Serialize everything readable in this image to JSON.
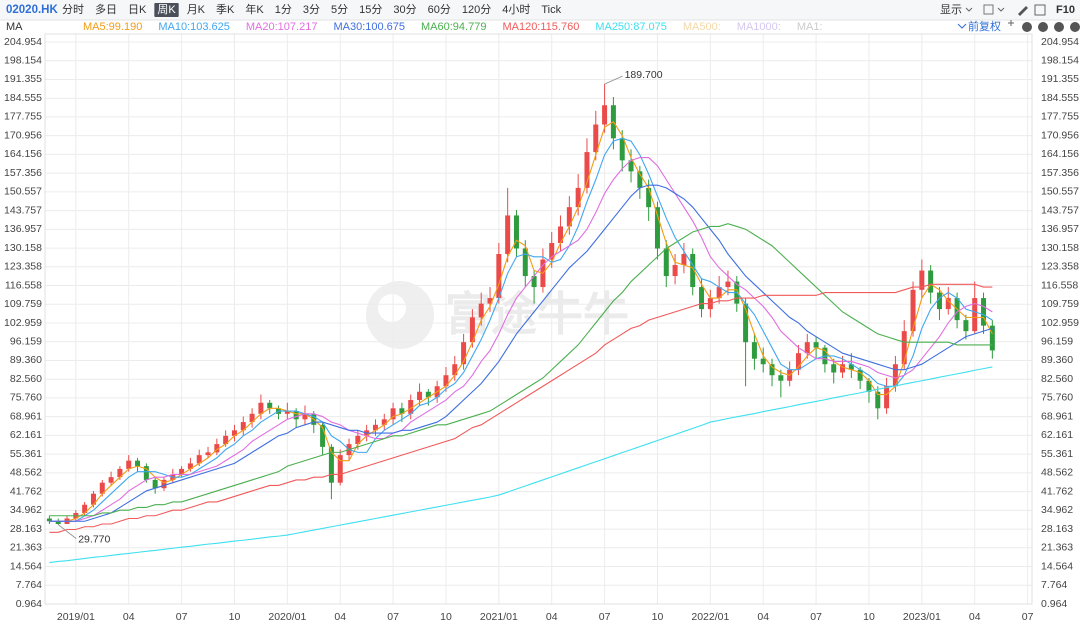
{
  "toolbar": {
    "symbol": "02020.HK",
    "periods": [
      "分时",
      "多日",
      "日K",
      "周K",
      "月K",
      "季K",
      "年K",
      "1分",
      "3分",
      "5分",
      "15分",
      "30分",
      "60分",
      "120分",
      "4小时",
      "Tick"
    ],
    "active_period": "周K",
    "display": "显示",
    "f10": "F10",
    "indicator": "MA",
    "adjust": "前复权",
    "watermark": "富途牛牛"
  },
  "chart_data": {
    "type": "candlestick",
    "categories": [
      null,
      null,
      null,
      "2019/01",
      null,
      null,
      null,
      null,
      null,
      "04",
      null,
      null,
      null,
      null,
      null,
      "07",
      null,
      null,
      null,
      null,
      null,
      "10",
      null,
      null,
      null,
      null,
      null,
      "2020/01",
      null,
      null,
      null,
      null,
      null,
      "04",
      null,
      null,
      null,
      null,
      null,
      "07",
      null,
      null,
      null,
      null,
      null,
      "10",
      null,
      null,
      null,
      null,
      null,
      "2021/01",
      null,
      null,
      null,
      null,
      null,
      "04",
      null,
      null,
      null,
      null,
      null,
      "07",
      null,
      null,
      null,
      null,
      null,
      "10",
      null,
      null,
      null,
      null,
      null,
      "2022/01",
      null,
      null,
      null,
      null,
      null,
      "04",
      null,
      null,
      null,
      null,
      null,
      "07",
      null,
      null,
      null,
      null,
      null,
      "10",
      null,
      null,
      null,
      null,
      null,
      "2023/01",
      null,
      null,
      null,
      null,
      null,
      "04",
      null,
      null,
      null,
      null,
      null,
      "07"
    ],
    "open": [
      32,
      31,
      30,
      32,
      34,
      37,
      41,
      45,
      47,
      50,
      53,
      51,
      46,
      43,
      46,
      48,
      50,
      52,
      55,
      56,
      59,
      62,
      64,
      67,
      70,
      74,
      72,
      70,
      71,
      68,
      70,
      66,
      58,
      45,
      55,
      59,
      62,
      64,
      66,
      68,
      72,
      70,
      75,
      78,
      76,
      80,
      84,
      88,
      96,
      105,
      110,
      112,
      128,
      142,
      130,
      120,
      116,
      126,
      132,
      138,
      145,
      152,
      165,
      175,
      182,
      170,
      162,
      158,
      152,
      145,
      130,
      120,
      124,
      128,
      116,
      108,
      112,
      116,
      118,
      110,
      96,
      90,
      88,
      84,
      82,
      86,
      92,
      96,
      94,
      88,
      85,
      88,
      86,
      82,
      78,
      72,
      80,
      88,
      100,
      115,
      122,
      114,
      108,
      112,
      104,
      100,
      112,
      102,
      null,
      null,
      null,
      null
    ],
    "high": [
      33,
      32,
      33,
      35,
      38,
      42,
      46,
      49,
      51,
      55,
      54,
      52,
      47,
      47,
      50,
      51,
      54,
      57,
      58,
      61,
      64,
      66,
      69,
      72,
      77,
      75,
      73,
      74,
      72,
      73,
      71,
      67,
      59,
      57,
      61,
      64,
      66,
      68,
      70,
      74,
      74,
      77,
      81,
      79,
      82,
      87,
      91,
      99,
      108,
      114,
      116,
      132,
      152,
      144,
      133,
      122,
      130,
      136,
      142,
      149,
      157,
      170,
      180,
      189.7,
      185,
      173,
      166,
      160,
      155,
      147,
      133,
      128,
      132,
      130,
      119,
      115,
      120,
      122,
      120,
      112,
      99,
      94,
      90,
      86,
      89,
      95,
      99,
      98,
      95,
      90,
      91,
      92,
      87,
      83,
      80,
      83,
      91,
      104,
      118,
      126,
      124,
      116,
      116,
      114,
      106,
      118,
      114,
      104,
      null,
      null,
      null,
      null
    ],
    "low": [
      30,
      29.77,
      30,
      31,
      33,
      36,
      40,
      44,
      46,
      49,
      49,
      45,
      41,
      42,
      45,
      47,
      49,
      51,
      54,
      55,
      58,
      60,
      62,
      65,
      68,
      70,
      68,
      68,
      65,
      66,
      63,
      55,
      39,
      44,
      53,
      57,
      60,
      62,
      64,
      66,
      67,
      68,
      73,
      73,
      74,
      78,
      82,
      86,
      94,
      102,
      107,
      110,
      125,
      127,
      116,
      110,
      114,
      123,
      129,
      135,
      142,
      150,
      162,
      172,
      166,
      158,
      154,
      148,
      140,
      126,
      116,
      117,
      121,
      113,
      105,
      105,
      110,
      113,
      107,
      80,
      86,
      85,
      80,
      76,
      80,
      84,
      90,
      90,
      85,
      81,
      83,
      83,
      79,
      74,
      68,
      70,
      78,
      86,
      98,
      112,
      110,
      104,
      106,
      101,
      97,
      99,
      99,
      90,
      null,
      null,
      null,
      null
    ],
    "close": [
      31,
      30,
      32,
      34,
      37,
      41,
      45,
      47,
      50,
      53,
      51,
      46,
      43,
      46,
      48,
      50,
      52,
      55,
      56,
      59,
      62,
      64,
      67,
      70,
      74,
      72,
      70,
      71,
      68,
      70,
      66,
      58,
      45,
      55,
      59,
      62,
      64,
      66,
      68,
      72,
      70,
      75,
      78,
      76,
      80,
      84,
      88,
      96,
      105,
      110,
      112,
      128,
      142,
      130,
      120,
      116,
      126,
      132,
      138,
      145,
      152,
      165,
      175,
      182,
      170,
      162,
      158,
      152,
      145,
      130,
      120,
      124,
      128,
      116,
      108,
      112,
      116,
      118,
      110,
      96,
      90,
      88,
      84,
      82,
      86,
      92,
      96,
      94,
      88,
      85,
      88,
      86,
      82,
      78,
      72,
      80,
      88,
      100,
      115,
      122,
      114,
      108,
      112,
      104,
      100,
      112,
      102,
      93,
      null,
      null,
      null,
      null
    ],
    "up_color": "#eb4a4a",
    "down_color": "#2e9b3e",
    "series": [
      {
        "name": "MA5:99.190",
        "color": "#f39c12",
        "values": [
          31,
          31,
          31,
          32,
          34,
          37,
          41,
          44,
          47,
          50,
          51,
          50,
          47,
          45,
          46,
          48,
          50,
          52,
          54,
          57,
          59,
          62,
          64,
          67,
          70,
          72,
          72,
          71,
          70,
          70,
          68,
          65,
          56,
          53,
          53,
          59,
          62,
          64,
          66,
          69,
          70,
          72,
          74,
          76,
          78,
          80,
          84,
          89,
          96,
          104,
          109,
          117,
          127,
          133,
          131,
          122,
          121,
          125,
          132,
          138,
          145,
          154,
          164,
          174,
          176,
          171,
          163,
          157,
          152,
          142,
          132,
          125,
          124,
          123,
          117,
          112,
          112,
          115,
          115,
          108,
          99,
          91,
          87,
          85,
          84,
          87,
          91,
          94,
          93,
          89,
          87,
          86,
          85,
          82,
          77,
          77,
          80,
          89,
          101,
          112,
          117,
          115,
          111,
          108,
          105,
          105,
          105,
          99,
          null,
          null,
          null,
          null
        ]
      },
      {
        "name": "MA10:103.625",
        "color": "#3fa7f0",
        "values": [
          31,
          31,
          31,
          31,
          33,
          35,
          38,
          41,
          44,
          47,
          49,
          49,
          49,
          48,
          47,
          47,
          48,
          50,
          52,
          54,
          57,
          59,
          62,
          64,
          67,
          69,
          71,
          71,
          71,
          70,
          69,
          67,
          62,
          60,
          57,
          56,
          56,
          61,
          64,
          66,
          68,
          70,
          73,
          74,
          76,
          79,
          81,
          85,
          91,
          97,
          104,
          112,
          121,
          127,
          128,
          127,
          127,
          125,
          126,
          131,
          138,
          147,
          155,
          164,
          169,
          170,
          169,
          164,
          157,
          149,
          141,
          134,
          129,
          124,
          119,
          118,
          116,
          114,
          114,
          110,
          106,
          100,
          94,
          88,
          86,
          86,
          88,
          90,
          91,
          91,
          90,
          88,
          86,
          84,
          81,
          80,
          80,
          84,
          91,
          101,
          108,
          112,
          114,
          112,
          108,
          107,
          106,
          104,
          null,
          null,
          null,
          null
        ]
      },
      {
        "name": "MA20:107.217",
        "color": "#e06ee0",
        "values": [
          31,
          31,
          31,
          31,
          32,
          33,
          35,
          37,
          39,
          42,
          44,
          46,
          47,
          47,
          48,
          48,
          48,
          49,
          50,
          51,
          53,
          55,
          57,
          60,
          62,
          64,
          66,
          68,
          69,
          70,
          70,
          69,
          67,
          66,
          64,
          63,
          62,
          61,
          61,
          63,
          64,
          67,
          69,
          71,
          73,
          75,
          78,
          80,
          84,
          89,
          93,
          99,
          106,
          112,
          116,
          120,
          124,
          127,
          129,
          131,
          133,
          137,
          143,
          150,
          155,
          159,
          162,
          163,
          163,
          160,
          155,
          150,
          145,
          140,
          134,
          127,
          123,
          120,
          117,
          115,
          112,
          109,
          105,
          100,
          97,
          94,
          92,
          90,
          90,
          89,
          89,
          89,
          88,
          87,
          85,
          84,
          83,
          84,
          86,
          90,
          94,
          98,
          103,
          107,
          109,
          110,
          109,
          107,
          null,
          null,
          null,
          null
        ]
      },
      {
        "name": "MA30:100.675",
        "color": "#3f6fe0",
        "values": [
          31,
          31,
          31,
          31,
          31,
          32,
          33,
          34,
          36,
          38,
          40,
          42,
          43,
          44,
          45,
          46,
          47,
          48,
          49,
          50,
          51,
          52,
          54,
          56,
          58,
          60,
          62,
          63,
          65,
          66,
          67,
          67,
          66,
          65,
          64,
          64,
          63,
          63,
          63,
          63,
          64,
          64,
          65,
          66,
          67,
          69,
          72,
          75,
          78,
          81,
          85,
          89,
          94,
          99,
          103,
          107,
          111,
          115,
          119,
          123,
          126,
          129,
          133,
          137,
          141,
          145,
          149,
          152,
          153,
          153,
          152,
          150,
          148,
          145,
          141,
          137,
          133,
          128,
          124,
          120,
          117,
          114,
          111,
          108,
          105,
          103,
          100,
          98,
          96,
          94,
          92,
          91,
          90,
          89,
          88,
          87,
          86,
          86,
          87,
          88,
          90,
          92,
          94,
          96,
          98,
          99,
          100,
          101,
          null,
          null,
          null,
          null
        ]
      },
      {
        "name": "MA60:94.779",
        "color": "#4caf50",
        "values": [
          33,
          33,
          33,
          33,
          33,
          33,
          34,
          34,
          35,
          35,
          36,
          36,
          37,
          37,
          38,
          38,
          39,
          40,
          41,
          42,
          43,
          44,
          45,
          46,
          47,
          48,
          49,
          51,
          52,
          53,
          54,
          55,
          56,
          56,
          57,
          58,
          59,
          60,
          61,
          62,
          62,
          63,
          64,
          65,
          66,
          66,
          67,
          68,
          69,
          70,
          71,
          73,
          75,
          77,
          79,
          81,
          83,
          86,
          89,
          92,
          95,
          99,
          103,
          107,
          111,
          114,
          118,
          121,
          124,
          127,
          130,
          132,
          134,
          136,
          137,
          138,
          138,
          139,
          138,
          137,
          135,
          133,
          131,
          128,
          125,
          122,
          119,
          116,
          113,
          110,
          107,
          105,
          103,
          101,
          99,
          98,
          97,
          96,
          96,
          96,
          96,
          96,
          96,
          95,
          95,
          95,
          95,
          95,
          null,
          null,
          null,
          null
        ]
      },
      {
        "name": "MA120:115.760",
        "color": "#f05a5a",
        "values": [
          27,
          27,
          28,
          28,
          29,
          29,
          30,
          30,
          31,
          32,
          32,
          33,
          33,
          34,
          35,
          35,
          36,
          37,
          38,
          38,
          39,
          40,
          41,
          42,
          43,
          44,
          44,
          45,
          46,
          46,
          47,
          47,
          48,
          48,
          49,
          50,
          51,
          52,
          53,
          54,
          55,
          56,
          57,
          58,
          59,
          60,
          61,
          63,
          65,
          66,
          68,
          70,
          72,
          74,
          76,
          78,
          80,
          82,
          84,
          86,
          88,
          90,
          92,
          95,
          97,
          99,
          101,
          102,
          104,
          105,
          106,
          107,
          108,
          109,
          110,
          110,
          111,
          111,
          112,
          112,
          112,
          113,
          113,
          113,
          113,
          113,
          113,
          113,
          114,
          114,
          114,
          114,
          114,
          114,
          114,
          114,
          114,
          115,
          116,
          116,
          117,
          117,
          117,
          117,
          117,
          117,
          116,
          116,
          null,
          null,
          null,
          null
        ]
      },
      {
        "name": "MA250:87.075",
        "color": "#3ee0f0",
        "values": [
          16,
          16.4,
          16.7,
          17.1,
          17.5,
          17.9,
          18.2,
          18.6,
          19,
          19.3,
          19.7,
          20.1,
          20.4,
          20.8,
          21.2,
          21.6,
          21.9,
          22.3,
          22.7,
          23,
          23.4,
          23.8,
          24.1,
          24.5,
          24.9,
          25.3,
          25.6,
          26,
          26.6,
          27.2,
          27.8,
          28.4,
          29,
          29.6,
          30.2,
          30.8,
          31.4,
          32,
          32.6,
          33.2,
          33.8,
          34.4,
          35,
          35.6,
          36.2,
          36.8,
          37.4,
          38,
          38.6,
          39.2,
          39.8,
          40.5,
          41.6,
          42.7,
          43.8,
          44.9,
          46,
          47.1,
          48.2,
          49.3,
          50.4,
          51.5,
          52.6,
          53.7,
          54.8,
          55.9,
          57,
          58.1,
          59.2,
          60.3,
          61.4,
          62.5,
          63.6,
          64.7,
          65.8,
          67,
          67.6,
          68.3,
          68.9,
          69.5,
          70.1,
          70.8,
          71.4,
          72,
          72.6,
          73.3,
          73.9,
          74.5,
          75.1,
          75.8,
          76.4,
          77,
          77.6,
          78.3,
          78.9,
          79.5,
          80.1,
          80.8,
          81.4,
          82,
          82.6,
          83.3,
          83.9,
          84.5,
          85.1,
          85.8,
          86.4,
          87,
          null,
          null,
          null,
          null
        ]
      }
    ],
    "inactive_legend": [
      {
        "name": "MA500:",
        "color": "#f3d9a8"
      },
      {
        "name": "MA1000:",
        "color": "#d5c8f0"
      },
      {
        "name": "MA1:",
        "color": "#cccccc"
      }
    ],
    "annotations": [
      "189.700",
      "29.770"
    ],
    "ylim": [
      0.964,
      204.954
    ],
    "yticks": [
      204.954,
      198.154,
      191.355,
      184.555,
      177.755,
      170.956,
      164.156,
      157.356,
      150.557,
      143.757,
      136.957,
      130.158,
      123.358,
      116.558,
      109.759,
      102.959,
      96.159,
      {
        "value": 89.36,
        "label": "89.360"
      },
      {
        "value": 82.56,
        "label": "82.560"
      },
      {
        "value": 75.76,
        "label": "75.760"
      },
      68.961,
      62.161,
      55.361,
      48.562,
      41.762,
      34.962,
      28.163,
      21.363,
      14.564,
      7.764,
      0.964
    ],
    "grid": true
  }
}
